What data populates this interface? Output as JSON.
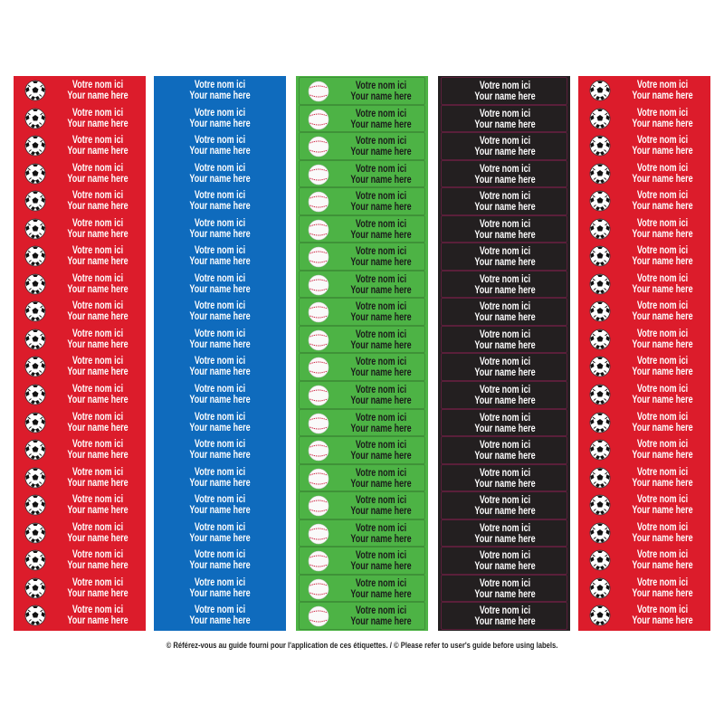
{
  "label_text": {
    "line1": "Votre nom ici",
    "line2": "Your name here"
  },
  "labels_per_sheet": 20,
  "sheets": [
    {
      "name": "red-soccer",
      "background": "#dc1c2b",
      "text_color": "#ffffff",
      "icon": "soccer-ball-icon"
    },
    {
      "name": "blue",
      "background": "#0f6bbd",
      "text_color": "#ffffff",
      "icon": ""
    },
    {
      "name": "green-baseball",
      "background": "#4db345",
      "text_color": "#1a1a1a",
      "icon": "baseball-icon"
    },
    {
      "name": "black",
      "background": "#231f20",
      "text_color": "#ffffff",
      "icon": ""
    },
    {
      "name": "red-soccer-2",
      "background": "#dc1c2b",
      "text_color": "#ffffff",
      "icon": "soccer-ball-icon"
    }
  ],
  "footer": "© Référez-vous au guide fourni pour l'application de ces étiquettes. / © Please refer to user's guide before using labels."
}
